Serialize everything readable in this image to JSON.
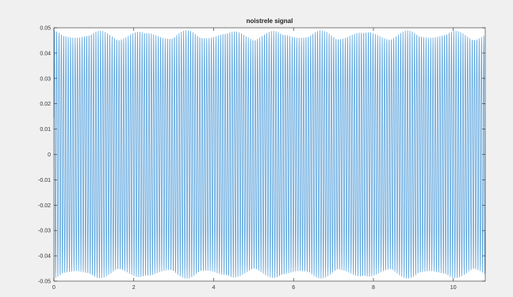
{
  "chart_data": {
    "type": "line",
    "title": "noistrele signal",
    "xlabel": "",
    "ylabel": "",
    "xlim": [
      0,
      10.8
    ],
    "ylim": [
      -0.05,
      0.05
    ],
    "xticks": [
      0,
      2,
      4,
      6,
      8,
      10
    ],
    "xtick_labels": [
      "0",
      "2",
      "4",
      "6",
      "8",
      "10"
    ],
    "yticks": [
      0.05,
      0.04,
      0.03,
      0.02,
      0.01,
      0,
      -0.01,
      -0.02,
      -0.03,
      -0.04,
      -0.05
    ],
    "ytick_labels": [
      "0.05",
      "0.04",
      "0.03",
      "0.02",
      "0.01",
      "0",
      "-0.01",
      "-0.02",
      "-0.03",
      "-0.04",
      "-0.05"
    ],
    "grid": false,
    "series": [
      {
        "color": "#5ba3dc",
        "description_of_data": "dense oscillating sinusoid with amplitude about 0.049",
        "amplitude": 0.049,
        "x_start": 0,
        "x_end": 10.8
      }
    ]
  },
  "colors": {
    "background": "#f0f0f0",
    "axes": "#ffffff",
    "line": "#5ba3dc",
    "axis_stroke": "#262626"
  }
}
